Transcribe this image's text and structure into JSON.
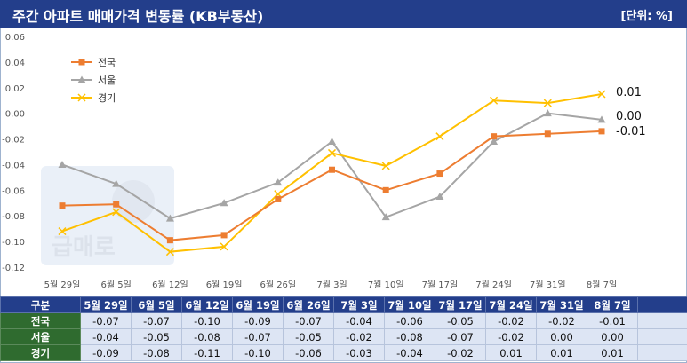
{
  "header": {
    "title": "주간 아파트 매매가격 변동률 (KB부동산)",
    "unit": "[단위: %]"
  },
  "colors": {
    "header_bg": "#233e8b",
    "row_label_bg": "#2f6b2f",
    "table_cell_bg": "#dde5f4",
    "national": "#ed7d31",
    "seoul": "#a5a5a5",
    "gyeonggi": "#ffc000"
  },
  "watermark": {
    "text": "급매로"
  },
  "chart_data": {
    "type": "line",
    "categories": [
      "5월 29일",
      "6월 5일",
      "6월 12일",
      "6월 19일",
      "6월 26일",
      "7월 3일",
      "7월 10일",
      "7월 17일",
      "7월 24일",
      "7월 31일",
      "8월 7일"
    ],
    "series": [
      {
        "name": "전국",
        "color": "#ed7d31",
        "marker": "square",
        "values": [
          -0.072,
          -0.071,
          -0.099,
          -0.095,
          -0.067,
          -0.044,
          -0.06,
          -0.047,
          -0.018,
          -0.016,
          -0.014
        ],
        "end_label": "-0.01"
      },
      {
        "name": "서울",
        "color": "#a5a5a5",
        "marker": "triangle",
        "values": [
          -0.04,
          -0.055,
          -0.082,
          -0.07,
          -0.054,
          -0.022,
          -0.081,
          -0.065,
          -0.022,
          0.0,
          -0.005
        ],
        "end_label": "0.00"
      },
      {
        "name": "경기",
        "color": "#ffc000",
        "marker": "x",
        "values": [
          -0.092,
          -0.077,
          -0.108,
          -0.104,
          -0.063,
          -0.031,
          -0.041,
          -0.018,
          0.01,
          0.008,
          0.015
        ],
        "end_label": "0.01"
      }
    ],
    "ylim": [
      -0.12,
      0.06
    ],
    "yticks": [
      0.06,
      0.04,
      0.02,
      0.0,
      -0.02,
      -0.04,
      -0.06,
      -0.08,
      -0.1,
      -0.12
    ],
    "ytick_labels": [
      "0.06",
      "0.04",
      "0.02",
      "0.00",
      "-0.02",
      "-0.04",
      "-0.06",
      "-0.08",
      "-0.10",
      "-0.12"
    ],
    "grid": false,
    "legend_position": "top-left"
  },
  "table": {
    "header_label": "구분",
    "columns": [
      "5월 29일",
      "6월 5일",
      "6월 12일",
      "6월 19일",
      "6월 26일",
      "7월 3일",
      "7월 10일",
      "7월 17일",
      "7월 24일",
      "7월 31일",
      "8월 7일"
    ],
    "rows": [
      {
        "label": "전국",
        "values": [
          "-0.07",
          "-0.07",
          "-0.10",
          "-0.09",
          "-0.07",
          "-0.04",
          "-0.06",
          "-0.05",
          "-0.02",
          "-0.02",
          "-0.01"
        ]
      },
      {
        "label": "서울",
        "values": [
          "-0.04",
          "-0.05",
          "-0.08",
          "-0.07",
          "-0.05",
          "-0.02",
          "-0.08",
          "-0.07",
          "-0.02",
          "0.00",
          "0.00"
        ]
      },
      {
        "label": "경기",
        "values": [
          "-0.09",
          "-0.08",
          "-0.11",
          "-0.10",
          "-0.06",
          "-0.03",
          "-0.04",
          "-0.02",
          "0.01",
          "0.01",
          "0.01"
        ]
      }
    ]
  }
}
